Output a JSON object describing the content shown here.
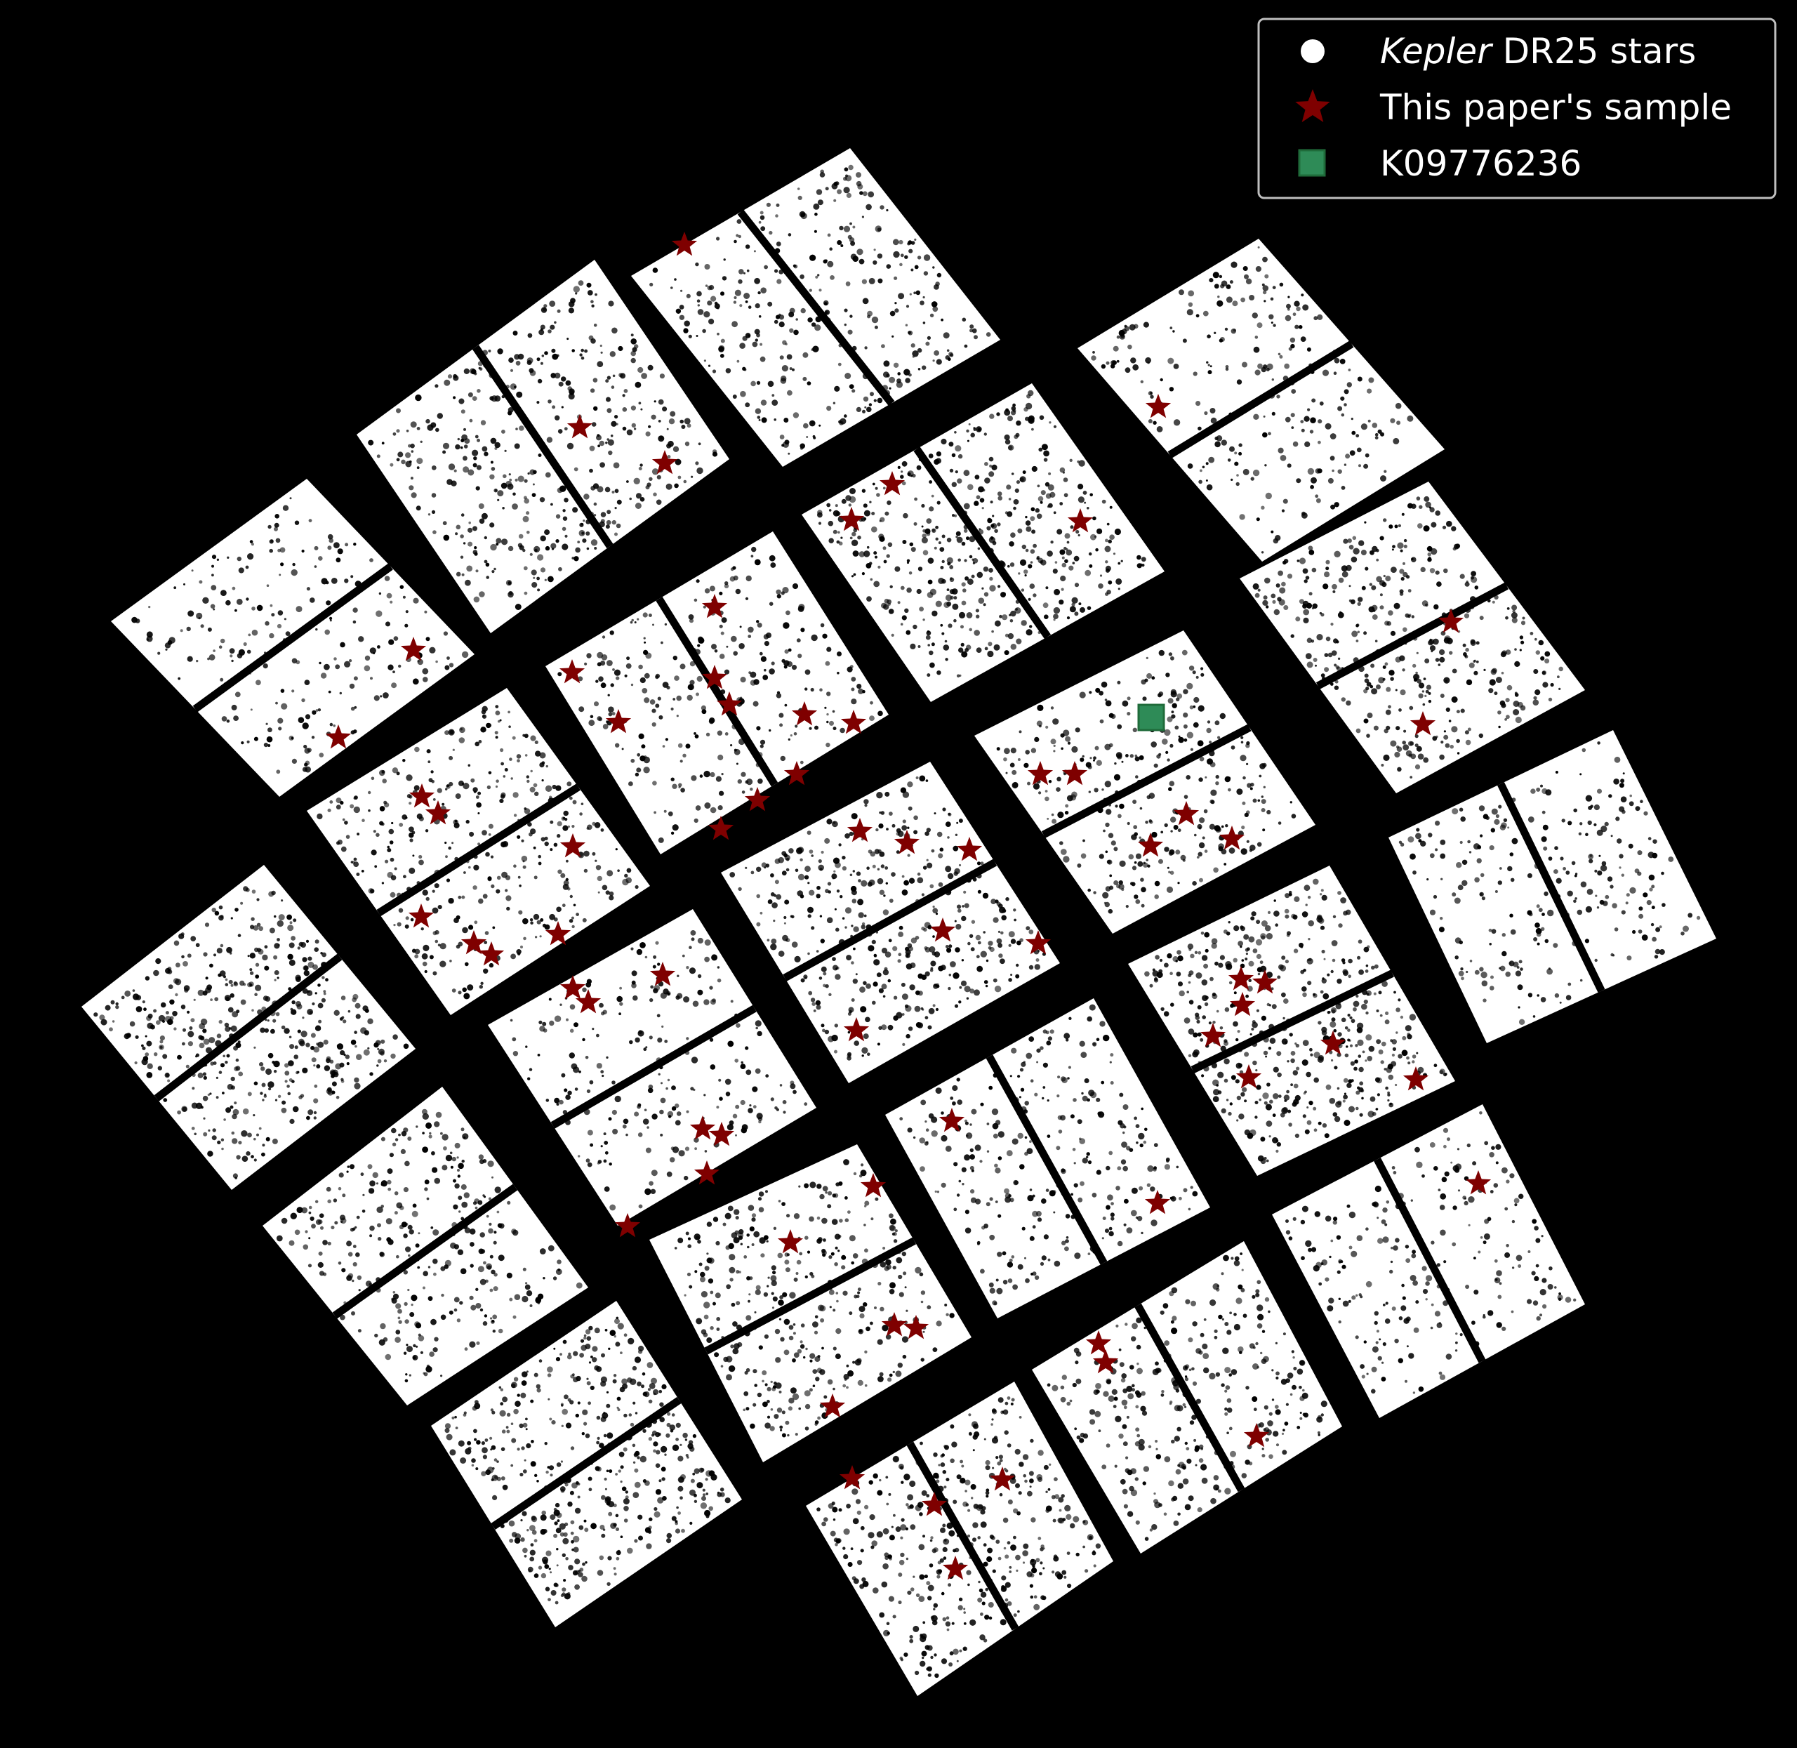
{
  "chart_data": {
    "type": "scatter",
    "title": "",
    "xlabel": "",
    "ylabel": "",
    "axes_visible": false,
    "grid": false,
    "background": "#000000",
    "legend_position": "top-right",
    "legend": {
      "entries": [
        {
          "key": "dr25",
          "label_italic": "Kepler",
          "label_rest": " DR25 stars"
        },
        {
          "key": "sample",
          "label_italic": "",
          "label_rest": "This paper's sample"
        },
        {
          "key": "target",
          "label_italic": "",
          "label_rest": "K09776236"
        }
      ]
    },
    "series": [
      {
        "key": "dr25",
        "marker": "circle",
        "color": "#ffffff",
        "modules": [
          [
            [
              158,
              885
            ],
            [
              437,
              682
            ],
            [
              676,
              932
            ],
            [
              398,
              1135
            ]
          ],
          [
            [
              508,
              619
            ],
            [
              847,
              370
            ],
            [
              1039,
              654
            ],
            [
              699,
              902
            ]
          ],
          [
            [
              899,
              393
            ],
            [
              1211,
              211
            ],
            [
              1425,
              484
            ],
            [
              1115,
              665
            ]
          ],
          [
            [
              1535,
              496
            ],
            [
              1793,
              340
            ],
            [
              2058,
              640
            ],
            [
              1798,
              800
            ]
          ],
          [
            [
              116,
              1434
            ],
            [
              376,
              1232
            ],
            [
              592,
              1494
            ],
            [
              330,
              1695
            ]
          ],
          [
            [
              437,
              1155
            ],
            [
              722,
              980
            ],
            [
              926,
              1262
            ],
            [
              642,
              1446
            ]
          ],
          [
            [
              777,
              949
            ],
            [
              1101,
              757
            ],
            [
              1266,
              1018
            ],
            [
              941,
              1217
            ]
          ],
          [
            [
              1142,
              733
            ],
            [
              1470,
              546
            ],
            [
              1659,
              814
            ],
            [
              1326,
              1000
            ]
          ],
          [
            [
              1766,
              824
            ],
            [
              2035,
              686
            ],
            [
              2258,
              983
            ],
            [
              1989,
              1130
            ]
          ],
          [
            [
              374,
              1746
            ],
            [
              630,
              1548
            ],
            [
              838,
              1834
            ],
            [
              580,
              2002
            ]
          ],
          [
            [
              695,
              1460
            ],
            [
              987,
              1295
            ],
            [
              1163,
              1578
            ],
            [
              880,
              1746
            ]
          ],
          [
            [
              1027,
              1243
            ],
            [
              1325,
              1085
            ],
            [
              1510,
              1372
            ],
            [
              1209,
              1543
            ]
          ],
          [
            [
              1388,
              1048
            ],
            [
              1686,
              898
            ],
            [
              1874,
              1175
            ],
            [
              1585,
              1330
            ]
          ],
          [
            [
              1978,
              1193
            ],
            [
              2298,
              1040
            ],
            [
              2445,
              1337
            ],
            [
              2118,
              1486
            ]
          ],
          [
            [
              614,
              2031
            ],
            [
              878,
              1853
            ],
            [
              1057,
              2136
            ],
            [
              791,
              2318
            ]
          ],
          [
            [
              925,
              1766
            ],
            [
              1221,
              1630
            ],
            [
              1384,
              1905
            ],
            [
              1087,
              2083
            ]
          ],
          [
            [
              1261,
              1588
            ],
            [
              1558,
              1422
            ],
            [
              1724,
              1720
            ],
            [
              1421,
              1878
            ]
          ],
          [
            [
              1607,
              1373
            ],
            [
              1894,
              1233
            ],
            [
              2073,
              1540
            ],
            [
              1791,
              1675
            ]
          ],
          [
            [
              1148,
              2145
            ],
            [
              1445,
              1968
            ],
            [
              1586,
              2224
            ],
            [
              1307,
              2416
            ]
          ],
          [
            [
              1470,
              1951
            ],
            [
              1772,
              1768
            ],
            [
              1912,
              2032
            ],
            [
              1625,
              2213
            ]
          ],
          [
            [
              1812,
              1730
            ],
            [
              2112,
              1573
            ],
            [
              2258,
              1858
            ],
            [
              1965,
              2020
            ]
          ]
        ]
      },
      {
        "key": "sample",
        "name": "This paper's sample",
        "marker": "star",
        "color": "#7f0000",
        "points": [
          [
            975,
            349
          ],
          [
            826,
            609
          ],
          [
            947,
            660
          ],
          [
            1271,
            690
          ],
          [
            1213,
            741
          ],
          [
            1539,
            743
          ],
          [
            1650,
            580
          ],
          [
            2067,
            886
          ],
          [
            2027,
            1032
          ],
          [
            589,
            926
          ],
          [
            482,
            1051
          ],
          [
            1018,
            865
          ],
          [
            815,
            958
          ],
          [
            1018,
            966
          ],
          [
            881,
            1029
          ],
          [
            1039,
            1004
          ],
          [
            1146,
            1018
          ],
          [
            1216,
            1030
          ],
          [
            1135,
            1103
          ],
          [
            1079,
            1140
          ],
          [
            1027,
            1181
          ],
          [
            601,
            1135
          ],
          [
            624,
            1159
          ],
          [
            816,
            1206
          ],
          [
            600,
            1306
          ],
          [
            675,
            1344
          ],
          [
            700,
            1360
          ],
          [
            795,
            1331
          ],
          [
            1225,
            1184
          ],
          [
            1292,
            1201
          ],
          [
            1381,
            1211
          ],
          [
            1482,
            1103
          ],
          [
            1531,
            1103
          ],
          [
            1690,
            1160
          ],
          [
            1639,
            1205
          ],
          [
            1755,
            1195
          ],
          [
            1343,
            1326
          ],
          [
            1479,
            1344
          ],
          [
            1220,
            1468
          ],
          [
            816,
            1408
          ],
          [
            838,
            1428
          ],
          [
            944,
            1389
          ],
          [
            1768,
            1395
          ],
          [
            1802,
            1400
          ],
          [
            1770,
            1432
          ],
          [
            1728,
            1476
          ],
          [
            1899,
            1487
          ],
          [
            1779,
            1535
          ],
          [
            2017,
            1538
          ],
          [
            1356,
            1597
          ],
          [
            1649,
            1714
          ],
          [
            1001,
            1608
          ],
          [
            1028,
            1617
          ],
          [
            1007,
            1672
          ],
          [
            894,
            1747
          ],
          [
            1244,
            1690
          ],
          [
            1126,
            1770
          ],
          [
            1274,
            1888
          ],
          [
            1305,
            1892
          ],
          [
            1186,
            2004
          ],
          [
            1565,
            1914
          ],
          [
            1575,
            1941
          ],
          [
            1790,
            2046
          ],
          [
            2106,
            1686
          ],
          [
            1214,
            2106
          ],
          [
            1331,
            2144
          ],
          [
            1428,
            2108
          ],
          [
            1361,
            2235
          ]
        ]
      },
      {
        "key": "target",
        "name": "K09776236",
        "marker": "square",
        "color": "#2e8b57",
        "points": [
          [
            1640,
            1022
          ]
        ]
      }
    ]
  }
}
